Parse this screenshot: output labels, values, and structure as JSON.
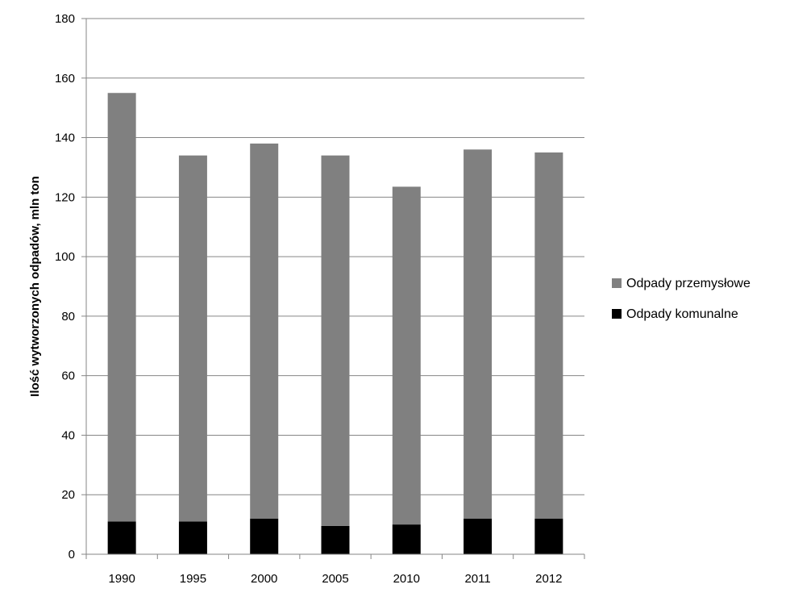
{
  "chart_data": {
    "type": "bar",
    "stacked": true,
    "categories": [
      "1990",
      "1995",
      "2000",
      "2005",
      "2010",
      "2011",
      "2012"
    ],
    "series": [
      {
        "name": "Odpady komunalne",
        "color": "#000000",
        "values": [
          11,
          11,
          12,
          9.5,
          10,
          12,
          12
        ]
      },
      {
        "name": "Odpady przemysłowe",
        "color": "#808080",
        "values": [
          144,
          123,
          126,
          124.5,
          113.5,
          124,
          123
        ]
      }
    ],
    "title": "",
    "xlabel": "",
    "ylabel": "Ilość wytworzonych odpadów, mln ton",
    "ylim": [
      0,
      180
    ],
    "yticks": [
      0,
      20,
      40,
      60,
      80,
      100,
      120,
      140,
      160,
      180
    ],
    "grid": true,
    "legend_position": "right",
    "legend_order": [
      "Odpady przemysłowe",
      "Odpady komunalne"
    ],
    "gridline_color": "#868686"
  }
}
